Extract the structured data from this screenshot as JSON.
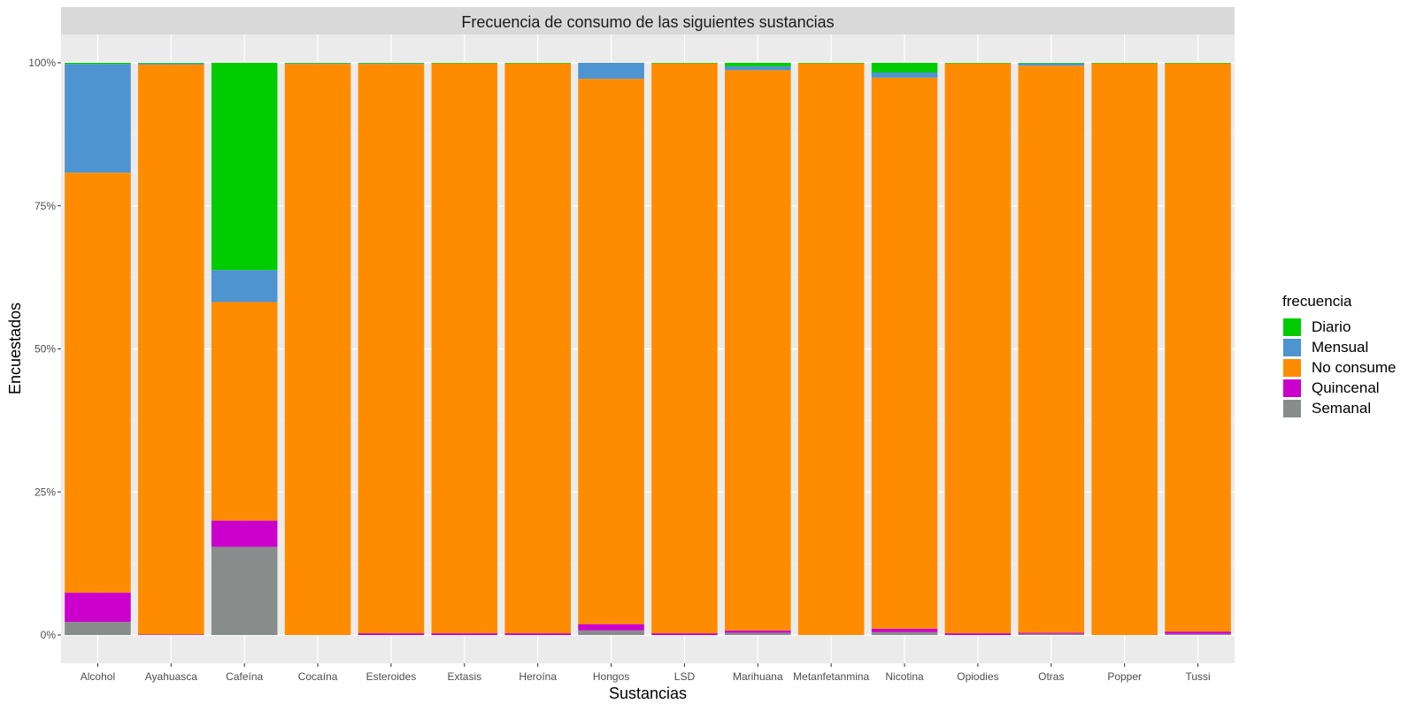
{
  "chart_data": {
    "type": "bar",
    "stacked": true,
    "title": "Frecuencia de consumo de las siguientes sustancias",
    "xlabel": "Sustancias",
    "ylabel": "Encuestados",
    "ylim": [
      0,
      1
    ],
    "yticks": [
      0,
      0.25,
      0.5,
      0.75,
      1.0
    ],
    "ytick_labels": [
      "0%",
      "25%",
      "50%",
      "75%",
      "100%"
    ],
    "grid": true,
    "legend_position": "right",
    "legend_title": "frecuencia",
    "categories": [
      "Alcohol",
      "Ayahuasca",
      "Cafeína",
      "Cocaína",
      "Esteroides",
      "Extasis",
      "Heroína",
      "Hongos",
      "LSD",
      "Marihuana",
      "Metanfetanmina",
      "Nicotina",
      "Opiodies",
      "Otras",
      "Popper",
      "Tussi"
    ],
    "series": [
      {
        "name": "Semanal",
        "color": "#888d8c",
        "values": [
          0.023,
          0.0,
          0.154,
          0.0,
          0.0,
          0.0,
          0.0,
          0.008,
          0.0,
          0.004,
          0.0,
          0.005,
          0.0,
          0.002,
          0.0,
          0.002
        ]
      },
      {
        "name": "Quincenal",
        "color": "#cc00cc",
        "values": [
          0.051,
          0.001,
          0.046,
          0.0,
          0.003,
          0.003,
          0.003,
          0.011,
          0.003,
          0.004,
          0.0,
          0.006,
          0.003,
          0.002,
          0.0,
          0.004
        ]
      },
      {
        "name": "No consume",
        "color": "#ff8c00",
        "values": [
          0.734,
          0.996,
          0.382,
          0.998,
          0.995,
          0.996,
          0.996,
          0.953,
          0.996,
          0.979,
          0.999,
          0.963,
          0.996,
          0.991,
          0.999,
          0.993
        ]
      },
      {
        "name": "Mensual",
        "color": "#4d94d0",
        "values": [
          0.19,
          0.002,
          0.056,
          0.001,
          0.001,
          0.0,
          0.0,
          0.028,
          0.0,
          0.007,
          0.0,
          0.009,
          0.0,
          0.004,
          0.0,
          0.0
        ]
      },
      {
        "name": "Diario",
        "color": "#00cc00",
        "values": [
          0.002,
          0.001,
          0.362,
          0.001,
          0.001,
          0.001,
          0.001,
          0.0,
          0.001,
          0.006,
          0.001,
          0.017,
          0.001,
          0.001,
          0.001,
          0.001
        ]
      }
    ],
    "legend_order": [
      "Diario",
      "Mensual",
      "No consume",
      "Quincenal",
      "Semanal"
    ]
  }
}
